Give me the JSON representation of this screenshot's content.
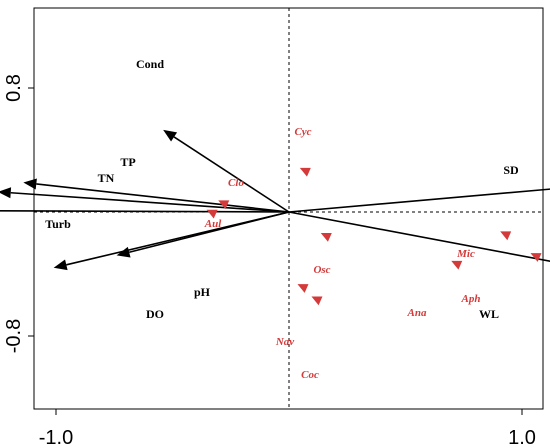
{
  "chart_data": {
    "type": "scatter",
    "title": "",
    "xlabel": "",
    "ylabel": "",
    "xlim": [
      -1.0,
      1.0
    ],
    "ylim": [
      -0.8,
      0.8
    ],
    "x_ticks": [
      {
        "value": -1.0,
        "label": "-1.0"
      },
      {
        "value": 1.0,
        "label": "1.0"
      }
    ],
    "y_ticks": [
      {
        "value": 0.8,
        "label": "0.8"
      },
      {
        "value": -0.8,
        "label": "-0.8"
      }
    ],
    "grid": false,
    "origin_lines": true,
    "env_arrows": [
      {
        "name": "Cond",
        "x": -0.54,
        "y": 0.53
      },
      {
        "name": "TP",
        "x": -1.14,
        "y": 0.19
      },
      {
        "name": "TN",
        "x": -1.25,
        "y": 0.13
      },
      {
        "name": "Turb",
        "x": -1.62,
        "y": 0.01
      },
      {
        "name": "SD",
        "x": 1.29,
        "y": 0.17
      },
      {
        "name": "pH",
        "x": -0.74,
        "y": -0.28
      },
      {
        "name": "DO",
        "x": -1.01,
        "y": -0.36
      },
      {
        "name": "WL",
        "x": 1.27,
        "y": -0.36
      }
    ],
    "species": [
      {
        "name": "Cyc",
        "x": 0.07,
        "y": 0.26
      },
      {
        "name": "Clo",
        "x": -0.28,
        "y": 0.05
      },
      {
        "name": "Aul",
        "x": -0.33,
        "y": -0.01
      },
      {
        "name": "Osc",
        "x": 0.16,
        "y": -0.16
      },
      {
        "name": "Mic",
        "x": 0.93,
        "y": -0.15
      },
      {
        "name": "Aph",
        "x": 1.06,
        "y": -0.29
      },
      {
        "name": "Ana",
        "x": 0.72,
        "y": -0.34
      },
      {
        "name": "Nav",
        "x": 0.06,
        "y": -0.49
      },
      {
        "name": "Coc",
        "x": 0.12,
        "y": -0.57
      }
    ],
    "colors": {
      "arrow": "#000000",
      "species": "#d43a3a"
    }
  }
}
